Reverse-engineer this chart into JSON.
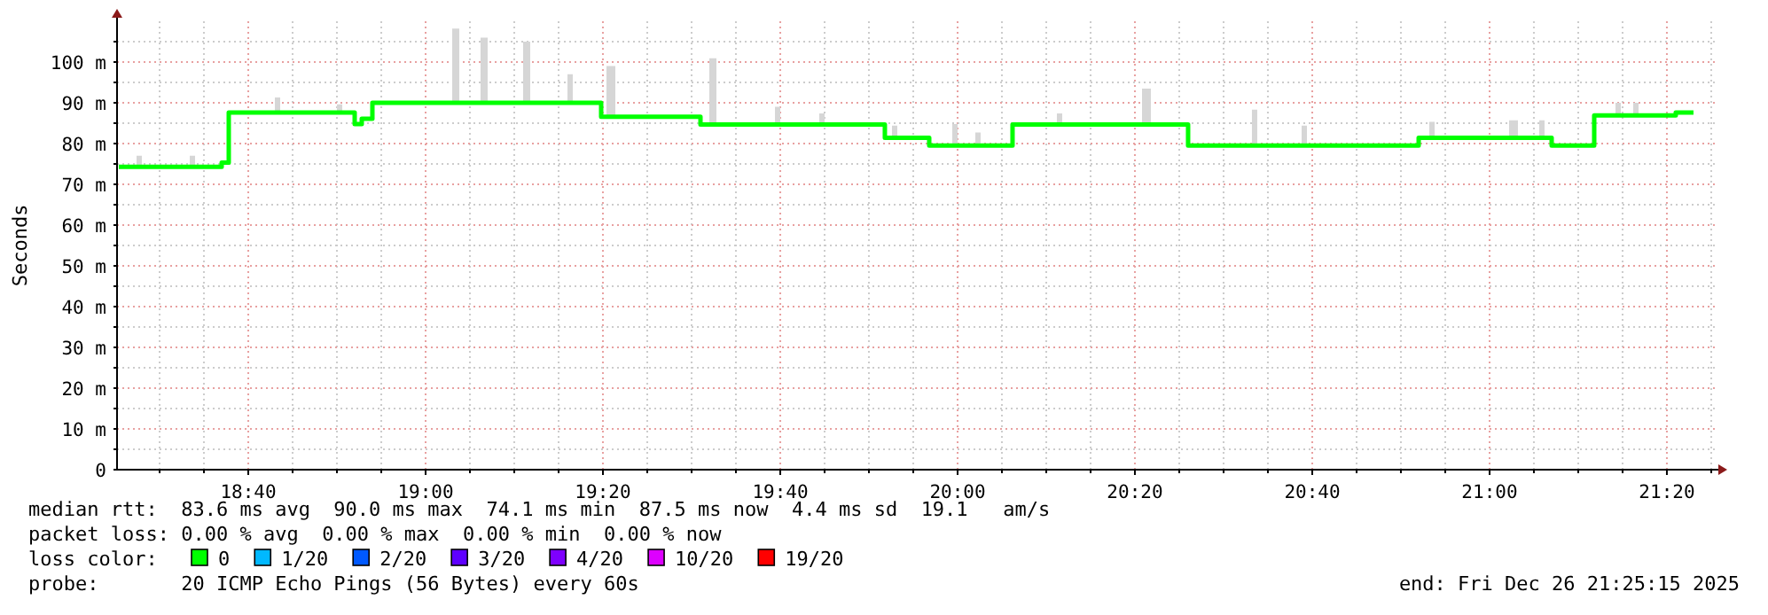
{
  "chart_data": {
    "type": "step",
    "ylabel": "Seconds",
    "xlim": [
      18.42,
      21.4267
    ],
    "ylim": [
      0,
      110
    ],
    "xticks": [
      {
        "value": 18.5,
        "label": null
      },
      {
        "value": 18.5833,
        "label": null
      },
      {
        "value": 18.6667,
        "label": "18:40"
      },
      {
        "value": 18.75,
        "label": null
      },
      {
        "value": 18.8333,
        "label": null
      },
      {
        "value": 18.9167,
        "label": null
      },
      {
        "value": 19,
        "label": "19:00"
      },
      {
        "value": 19.0833,
        "label": null
      },
      {
        "value": 19.1667,
        "label": null
      },
      {
        "value": 19.25,
        "label": null
      },
      {
        "value": 19.3333,
        "label": "19:20"
      },
      {
        "value": 19.4167,
        "label": null
      },
      {
        "value": 19.5,
        "label": null
      },
      {
        "value": 19.5833,
        "label": null
      },
      {
        "value": 19.6667,
        "label": "19:40"
      },
      {
        "value": 19.75,
        "label": null
      },
      {
        "value": 19.8333,
        "label": null
      },
      {
        "value": 19.9167,
        "label": null
      },
      {
        "value": 20,
        "label": "20:00"
      },
      {
        "value": 20.0833,
        "label": null
      },
      {
        "value": 20.1667,
        "label": null
      },
      {
        "value": 20.25,
        "label": null
      },
      {
        "value": 20.3333,
        "label": "20:20"
      },
      {
        "value": 20.4167,
        "label": null
      },
      {
        "value": 20.5,
        "label": null
      },
      {
        "value": 20.5833,
        "label": null
      },
      {
        "value": 20.6667,
        "label": "20:40"
      },
      {
        "value": 20.75,
        "label": null
      },
      {
        "value": 20.8333,
        "label": null
      },
      {
        "value": 20.9167,
        "label": null
      },
      {
        "value": 21,
        "label": "21:00"
      },
      {
        "value": 21.0833,
        "label": null
      },
      {
        "value": 21.1667,
        "label": null
      },
      {
        "value": 21.25,
        "label": null
      },
      {
        "value": 21.3333,
        "label": "21:20"
      },
      {
        "value": 21.4167,
        "label": null
      }
    ],
    "yticks": [
      0,
      {
        "value": 5,
        "label": null
      },
      {
        "value": 10,
        "label": "10 m"
      },
      {
        "value": 15,
        "label": null
      },
      {
        "value": 20,
        "label": "20 m"
      },
      {
        "value": 25,
        "label": null
      },
      {
        "value": 30,
        "label": "30 m"
      },
      {
        "value": 35,
        "label": null
      },
      {
        "value": 40,
        "label": "40 m"
      },
      {
        "value": 45,
        "label": null
      },
      {
        "value": 50,
        "label": "50 m"
      },
      {
        "value": 55,
        "label": null
      },
      {
        "value": 60,
        "label": "60 m"
      },
      {
        "value": 65,
        "label": null
      },
      {
        "value": 70,
        "label": "70 m"
      },
      {
        "value": 75,
        "label": null
      },
      {
        "value": 80,
        "label": "80 m"
      },
      {
        "value": 85,
        "label": null
      },
      {
        "value": 90,
        "label": "90 m"
      },
      {
        "value": 95,
        "label": null
      },
      {
        "value": 100,
        "label": "100 m"
      },
      {
        "value": 105,
        "label": null
      }
    ],
    "grid": true,
    "legend": "bottom",
    "legend_title": "loss color:",
    "series": [
      {
        "name": "0",
        "color": "#00ff00",
        "x": [
          18.4233,
          18.4567,
          18.4667,
          18.5567,
          18.5667,
          18.6167,
          18.63,
          18.7167,
          18.7267,
          18.8333,
          18.8433,
          18.8667,
          18.88,
          18.9,
          19.05,
          19.0633,
          19.1033,
          19.1167,
          19.1833,
          19.1967,
          19.2667,
          19.2767,
          19.33,
          19.34,
          19.3567,
          19.5167,
          19.5333,
          19.5467,
          19.6567,
          19.6667,
          19.74,
          19.75,
          19.8633,
          19.8767,
          19.8867,
          19.9467,
          19.99,
          20.0,
          20.0333,
          20.0433,
          20.1033,
          20.1867,
          20.1967,
          20.3467,
          20.3633,
          20.4333,
          20.5533,
          20.5633,
          20.6467,
          20.6567,
          20.8667,
          20.8867,
          20.8967,
          21.0367,
          21.0533,
          21.0933,
          21.1033,
          21.1167,
          21.1967,
          21.2367,
          21.2467,
          21.27,
          21.28,
          21.35,
          21.3833
        ],
        "values": [
          74.3,
          74.3,
          74.3,
          74.3,
          74.3,
          75.3,
          87.6,
          87.6,
          87.6,
          87.6,
          87.6,
          84.8,
          86.1,
          90,
          90,
          90,
          90,
          90,
          90,
          90,
          90,
          90,
          86.6,
          86.6,
          86.6,
          84.7,
          84.7,
          84.7,
          84.7,
          84.7,
          84.7,
          84.7,
          81.4,
          81.4,
          81.4,
          79.5,
          79.5,
          79.5,
          79.5,
          79.5,
          84.7,
          84.7,
          84.7,
          84.7,
          84.7,
          79.5,
          79.5,
          79.5,
          79.5,
          79.5,
          81.4,
          81.4,
          81.4,
          81.4,
          81.4,
          81.4,
          81.4,
          79.5,
          86.9,
          86.9,
          86.9,
          86.9,
          86.9,
          87.6,
          87.6
        ],
        "lower": [
          74.3,
          74.3,
          74.3,
          74.3,
          74.3,
          75.3,
          87.6,
          87.6,
          87.6,
          87.6,
          87.6,
          84.8,
          86.1,
          90,
          90,
          90,
          90,
          90,
          90,
          90,
          90,
          90,
          86.6,
          86.6,
          86.6,
          84.7,
          84.7,
          84.7,
          84.7,
          84.7,
          84.7,
          84.7,
          81.4,
          81.4,
          81.4,
          79.5,
          79.5,
          79.5,
          79.5,
          79.5,
          84.7,
          84.7,
          84.7,
          84.7,
          84.7,
          79.5,
          79.5,
          79.5,
          79.5,
          79.5,
          81.4,
          81.4,
          81.4,
          81.4,
          81.4,
          81.4,
          81.4,
          79.5,
          86.9,
          86.9,
          86.9,
          86.9,
          86.9,
          87.6,
          87.6
        ],
        "upper": [
          74.3,
          77,
          74.3,
          77,
          74.3,
          75.3,
          87.6,
          91.3,
          87.6,
          89.6,
          87.6,
          84.8,
          86.1,
          90,
          108.2,
          90,
          106,
          90,
          105,
          90,
          97,
          90,
          86.6,
          99,
          86.6,
          84.7,
          100.9,
          84.7,
          89,
          84.7,
          87.4,
          84.7,
          81.4,
          84.4,
          81.4,
          79.5,
          84.8,
          79.5,
          82.7,
          79.5,
          84.7,
          87.4,
          84.7,
          93.5,
          84.7,
          79.5,
          88.3,
          79.5,
          84.4,
          79.5,
          81.4,
          85.3,
          81.4,
          85.7,
          81.4,
          85.7,
          81.4,
          79.5,
          86.9,
          90,
          86.9,
          90,
          86.9,
          87.6,
          87.6
        ]
      },
      {
        "name": "1/20",
        "color": "#00b8ff"
      },
      {
        "name": "2/20",
        "color": "#0059ff"
      },
      {
        "name": "3/20",
        "color": "#5e00ff"
      },
      {
        "name": "4/20",
        "color": "#7e00ff"
      },
      {
        "name": "10/20",
        "color": "#dd00ff"
      },
      {
        "name": "19/20",
        "color": "#ff0000"
      }
    ],
    "annotations": [
      "median rtt:  83.6 ms avg  90.0 ms max  74.1 ms min  87.5 ms now  4.4 ms sd  19.1   am/s",
      "packet loss: 0.00 % avg  0.00 % max  0.00 % min  0.00 % now",
      "probe:       20 ICMP Echo Pings (56 Bytes) every 60s",
      "end: Fri Dec 26 21:25:15 2025"
    ]
  }
}
